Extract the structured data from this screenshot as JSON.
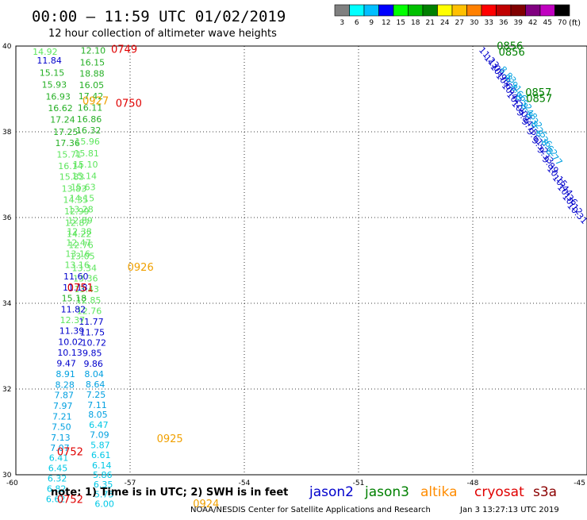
{
  "header": {
    "title": "00:00 — 11:59 UTC 01/02/2019",
    "subtitle": "12 hour collection of altimeter wave heights"
  },
  "colorbar": {
    "unit": "(ft)",
    "labels": [
      "3",
      "6",
      "9",
      "12",
      "15",
      "18",
      "21",
      "24",
      "27",
      "30",
      "33",
      "36",
      "39",
      "42",
      "45",
      "70"
    ],
    "colors": [
      "#808080",
      "#00ffff",
      "#00bfff",
      "#0000ff",
      "#00ff00",
      "#00c000",
      "#008000",
      "#ffff00",
      "#ffc000",
      "#ff8000",
      "#ff0000",
      "#c00000",
      "#800000",
      "#800080",
      "#c000c0",
      "#000000"
    ]
  },
  "chart_data": {
    "type": "scatter",
    "xlim": [
      -60,
      -45
    ],
    "ylim": [
      30,
      40
    ],
    "x_ticks": [
      -60,
      -57,
      -54,
      -51,
      -48,
      -45
    ],
    "y_ticks": [
      30,
      32,
      34,
      36,
      38,
      40
    ],
    "x_tick_labels": [
      "-60",
      "-57",
      "-54",
      "-51",
      "-48",
      "-45"
    ],
    "y_tick_labels": [
      "30",
      "32",
      "34",
      "36",
      "38",
      "40"
    ],
    "grid": true,
    "wave_heights": [
      {
        "lon": -59.56,
        "lat": 39.8,
        "value": "14.92",
        "color": "#5ee65e"
      },
      {
        "lon": -59.45,
        "lat": 39.59,
        "value": "11.84",
        "color": "#0000cc"
      },
      {
        "lon": -59.38,
        "lat": 39.31,
        "value": "15.15",
        "color": "#26b026"
      },
      {
        "lon": -59.32,
        "lat": 39.03,
        "value": "15.93",
        "color": "#26b026"
      },
      {
        "lon": -59.22,
        "lat": 38.75,
        "value": "16.93",
        "color": "#26b026"
      },
      {
        "lon": -59.16,
        "lat": 38.48,
        "value": "16.62",
        "color": "#26b026"
      },
      {
        "lon": -59.1,
        "lat": 38.21,
        "value": "17.24",
        "color": "#26b026"
      },
      {
        "lon": -59.02,
        "lat": 37.93,
        "value": "17.25",
        "color": "#26b026"
      },
      {
        "lon": -58.97,
        "lat": 37.67,
        "value": "17.36",
        "color": "#26b026"
      },
      {
        "lon": -58.93,
        "lat": 37.4,
        "value": "15.71",
        "color": "#5ee65e"
      },
      {
        "lon": -58.89,
        "lat": 37.13,
        "value": "16.14",
        "color": "#5ee65e"
      },
      {
        "lon": -58.86,
        "lat": 36.88,
        "value": "15.83",
        "color": "#5ee65e"
      },
      {
        "lon": -58.8,
        "lat": 36.6,
        "value": "13.83",
        "color": "#5ee65e"
      },
      {
        "lon": -58.76,
        "lat": 36.34,
        "value": "14.35",
        "color": "#5ee65e"
      },
      {
        "lon": -58.73,
        "lat": 36.07,
        "value": "12.99",
        "color": "#5ee65e"
      },
      {
        "lon": -58.71,
        "lat": 35.81,
        "value": "12.87",
        "color": "#5ee65e"
      },
      {
        "lon": -58.67,
        "lat": 35.55,
        "value": "14.22",
        "color": "#5ee65e"
      },
      {
        "lon": -58.62,
        "lat": 35.29,
        "value": "12.76",
        "color": "#5ee65e"
      },
      {
        "lon": -58.58,
        "lat": 35.03,
        "value": "13.05",
        "color": "#5ee65e"
      },
      {
        "lon": -58.53,
        "lat": 34.75,
        "value": "13.34",
        "color": "#5ee65e"
      },
      {
        "lon": -58.5,
        "lat": 34.51,
        "value": "13.36",
        "color": "#5ee65e"
      },
      {
        "lon": -58.47,
        "lat": 34.26,
        "value": "13.43",
        "color": "#5ee65e"
      },
      {
        "lon": -58.42,
        "lat": 34.0,
        "value": "12.85",
        "color": "#5ee65e"
      },
      {
        "lon": -58.4,
        "lat": 33.75,
        "value": "12.76",
        "color": "#5ee65e"
      },
      {
        "lon": -58.35,
        "lat": 33.5,
        "value": "11.77",
        "color": "#0000cc"
      },
      {
        "lon": -58.32,
        "lat": 33.25,
        "value": "11.75",
        "color": "#0000cc"
      },
      {
        "lon": -58.28,
        "lat": 33.01,
        "value": "10.72",
        "color": "#0000cc"
      },
      {
        "lon": -58.25,
        "lat": 32.77,
        "value": "9.85",
        "color": "#0000cc"
      },
      {
        "lon": -58.22,
        "lat": 32.52,
        "value": "9.86",
        "color": "#0000cc"
      },
      {
        "lon": -58.2,
        "lat": 32.28,
        "value": "8.04",
        "color": "#00a0e0"
      },
      {
        "lon": -58.17,
        "lat": 32.04,
        "value": "8.64",
        "color": "#00a0e0"
      },
      {
        "lon": -58.15,
        "lat": 31.8,
        "value": "7.25",
        "color": "#00a0e0"
      },
      {
        "lon": -58.12,
        "lat": 31.56,
        "value": "7.11",
        "color": "#00a0e0"
      },
      {
        "lon": -58.1,
        "lat": 31.33,
        "value": "8.05",
        "color": "#00a0e0"
      },
      {
        "lon": -58.08,
        "lat": 31.09,
        "value": "6.47",
        "color": "#00c8e6"
      },
      {
        "lon": -58.06,
        "lat": 30.86,
        "value": "7.09",
        "color": "#00a0e0"
      },
      {
        "lon": -58.04,
        "lat": 30.62,
        "value": "5.87",
        "color": "#00c8e6"
      },
      {
        "lon": -58.02,
        "lat": 30.39,
        "value": "6.61",
        "color": "#00c8e6"
      },
      {
        "lon": -58.0,
        "lat": 30.15,
        "value": "6.14",
        "color": "#00c8e6"
      },
      {
        "lon": -57.98,
        "lat": 29.93,
        "value": "5.86",
        "color": "#00c8e6"
      },
      {
        "lon": -57.96,
        "lat": 29.7,
        "value": "6.35",
        "color": "#00c8e6"
      },
      {
        "lon": -57.94,
        "lat": 29.47,
        "value": "5.75",
        "color": "#00c8e6"
      },
      {
        "lon": -57.93,
        "lat": 29.25,
        "value": "6.00",
        "color": "#00c8e6"
      },
      {
        "lon": -58.3,
        "lat": 39.82,
        "value": "12.10",
        "color": "#26b026"
      },
      {
        "lon": -58.32,
        "lat": 39.55,
        "value": "16.15",
        "color": "#26b026"
      },
      {
        "lon": -58.33,
        "lat": 39.29,
        "value": "18.88",
        "color": "#26b026"
      },
      {
        "lon": -58.34,
        "lat": 39.02,
        "value": "16.05",
        "color": "#26b026"
      },
      {
        "lon": -58.36,
        "lat": 38.76,
        "value": "17.42",
        "color": "#26b026"
      },
      {
        "lon": -58.38,
        "lat": 38.49,
        "value": "16.11",
        "color": "#26b026"
      },
      {
        "lon": -58.4,
        "lat": 38.22,
        "value": "16.86",
        "color": "#26b026"
      },
      {
        "lon": -58.42,
        "lat": 37.96,
        "value": "16.32",
        "color": "#26b026"
      },
      {
        "lon": -58.45,
        "lat": 37.7,
        "value": "15.96",
        "color": "#5ee65e"
      },
      {
        "lon": -58.47,
        "lat": 37.43,
        "value": "15.81",
        "color": "#5ee65e"
      },
      {
        "lon": -58.5,
        "lat": 37.17,
        "value": "15.10",
        "color": "#5ee65e"
      },
      {
        "lon": -58.53,
        "lat": 36.9,
        "value": "15.14",
        "color": "#5ee65e"
      },
      {
        "lon": -58.56,
        "lat": 36.64,
        "value": "15.63",
        "color": "#5ee65e"
      },
      {
        "lon": -58.59,
        "lat": 36.38,
        "value": "14.15",
        "color": "#5ee65e"
      },
      {
        "lon": -58.62,
        "lat": 36.12,
        "value": "13.28",
        "color": "#5ee65e"
      },
      {
        "lon": -58.64,
        "lat": 35.86,
        "value": "12.89",
        "color": "#5ee65e"
      },
      {
        "lon": -58.66,
        "lat": 35.6,
        "value": "12.38",
        "color": "#5ee65e"
      },
      {
        "lon": -58.68,
        "lat": 35.34,
        "value": "12.47",
        "color": "#5ee65e"
      },
      {
        "lon": -58.7,
        "lat": 35.08,
        "value": "13.16",
        "color": "#5ee65e"
      },
      {
        "lon": -58.72,
        "lat": 34.82,
        "value": "13.16",
        "color": "#5ee65e"
      },
      {
        "lon": -58.75,
        "lat": 34.56,
        "value": "11.60",
        "color": "#0000cc"
      },
      {
        "lon": -58.77,
        "lat": 34.3,
        "value": "11.18",
        "color": "#0000cc"
      },
      {
        "lon": -58.8,
        "lat": 34.05,
        "value": "15.18",
        "color": "#26b026"
      },
      {
        "lon": -58.82,
        "lat": 33.79,
        "value": "11.82",
        "color": "#0000cc"
      },
      {
        "lon": -58.84,
        "lat": 33.54,
        "value": "12.37",
        "color": "#5ee65e"
      },
      {
        "lon": -58.86,
        "lat": 33.29,
        "value": "11.39",
        "color": "#0000cc"
      },
      {
        "lon": -58.89,
        "lat": 33.03,
        "value": "10.02",
        "color": "#0000cc"
      },
      {
        "lon": -58.91,
        "lat": 32.78,
        "value": "10.13",
        "color": "#0000cc"
      },
      {
        "lon": -58.93,
        "lat": 32.53,
        "value": "9.47",
        "color": "#0000cc"
      },
      {
        "lon": -58.95,
        "lat": 32.28,
        "value": "8.91",
        "color": "#00a0e0"
      },
      {
        "lon": -58.97,
        "lat": 32.03,
        "value": "8.28",
        "color": "#00a0e0"
      },
      {
        "lon": -58.99,
        "lat": 31.79,
        "value": "7.87",
        "color": "#00a0e0"
      },
      {
        "lon": -59.02,
        "lat": 31.54,
        "value": "7.97",
        "color": "#00a0e0"
      },
      {
        "lon": -59.04,
        "lat": 31.29,
        "value": "7.21",
        "color": "#00a0e0"
      },
      {
        "lon": -59.06,
        "lat": 31.05,
        "value": "7.50",
        "color": "#00a0e0"
      },
      {
        "lon": -59.08,
        "lat": 30.8,
        "value": "7.13",
        "color": "#00a0e0"
      },
      {
        "lon": -59.1,
        "lat": 30.56,
        "value": "7.07",
        "color": "#00a0e0"
      },
      {
        "lon": -59.13,
        "lat": 30.32,
        "value": "6.41",
        "color": "#00c8e6"
      },
      {
        "lon": -59.15,
        "lat": 30.08,
        "value": "6.45",
        "color": "#00c8e6"
      },
      {
        "lon": -59.17,
        "lat": 29.84,
        "value": "6.32",
        "color": "#00c8e6"
      },
      {
        "lon": -59.19,
        "lat": 29.6,
        "value": "6.82",
        "color": "#00c8e6"
      },
      {
        "lon": -59.21,
        "lat": 29.36,
        "value": "6.62",
        "color": "#00c8e6"
      }
    ],
    "pass_times": [
      {
        "lon": -57.5,
        "lat": 39.84,
        "value": "0749",
        "color": "#e00000"
      },
      {
        "lon": -58.25,
        "lat": 38.64,
        "value": "0927",
        "color": "#f0a000"
      },
      {
        "lon": -57.38,
        "lat": 38.58,
        "value": "0750",
        "color": "#e00000"
      },
      {
        "lon": -57.07,
        "lat": 34.76,
        "value": "0926",
        "color": "#f0a000"
      },
      {
        "lon": -58.65,
        "lat": 34.28,
        "value": "0751",
        "color": "#e00000"
      },
      {
        "lon": -56.3,
        "lat": 30.76,
        "value": "0925",
        "color": "#f0a000"
      },
      {
        "lon": -58.92,
        "lat": 30.45,
        "value": "0752",
        "color": "#e00000"
      },
      {
        "lon": -58.92,
        "lat": 29.34,
        "value": "0752",
        "color": "#e00000"
      },
      {
        "lon": -55.35,
        "lat": 29.24,
        "value": "0924",
        "color": "#f0a000"
      },
      {
        "lon": -47.37,
        "lat": 39.92,
        "value": "0856",
        "color": "#008000"
      },
      {
        "lon": -47.32,
        "lat": 39.78,
        "value": "0856",
        "color": "#008000"
      },
      {
        "lon": -46.62,
        "lat": 38.83,
        "value": "0857",
        "color": "#008000"
      },
      {
        "lon": -46.6,
        "lat": 38.69,
        "value": "0857",
        "color": "#008000"
      }
    ],
    "swath_heights": [
      {
        "lon": -47.85,
        "lat": 39.9,
        "value": "11.23",
        "color": "#0000cc"
      },
      {
        "lon": -47.71,
        "lat": 39.72,
        "value": "11.09",
        "color": "#0000cc"
      },
      {
        "lon": -47.55,
        "lat": 39.51,
        "value": "10.98",
        "color": "#0000cc"
      },
      {
        "lon": -47.4,
        "lat": 39.3,
        "value": "10.66",
        "color": "#0000cc"
      },
      {
        "lon": -47.25,
        "lat": 39.07,
        "value": "10.42",
        "color": "#0000cc"
      },
      {
        "lon": -47.12,
        "lat": 38.86,
        "value": "10.21",
        "color": "#0000cc"
      },
      {
        "lon": -46.99,
        "lat": 38.65,
        "value": "10.07",
        "color": "#0000cc"
      },
      {
        "lon": -46.86,
        "lat": 38.44,
        "value": "9.84",
        "color": "#0000cc"
      },
      {
        "lon": -46.73,
        "lat": 38.23,
        "value": "9.75",
        "color": "#0000cc"
      },
      {
        "lon": -46.59,
        "lat": 38.0,
        "value": "9.61",
        "color": "#0000cc"
      },
      {
        "lon": -46.46,
        "lat": 37.79,
        "value": "9.52",
        "color": "#0000cc"
      },
      {
        "lon": -46.32,
        "lat": 37.57,
        "value": "9.33",
        "color": "#0000cc"
      },
      {
        "lon": -46.19,
        "lat": 37.35,
        "value": "9.89",
        "color": "#0000cc"
      },
      {
        "lon": -46.06,
        "lat": 37.13,
        "value": "10.15",
        "color": "#0000cc"
      },
      {
        "lon": -45.92,
        "lat": 36.92,
        "value": "10.44",
        "color": "#0000cc"
      },
      {
        "lon": -45.79,
        "lat": 36.7,
        "value": "10.36",
        "color": "#0000cc"
      },
      {
        "lon": -45.66,
        "lat": 36.48,
        "value": "10.12",
        "color": "#0000cc"
      },
      {
        "lon": -45.53,
        "lat": 36.27,
        "value": "10.31",
        "color": "#0000cc"
      },
      {
        "lon": -47.3,
        "lat": 39.45,
        "value": "8.83",
        "color": "#00a0e0"
      },
      {
        "lon": -47.16,
        "lat": 39.24,
        "value": "8.91",
        "color": "#00a0e0"
      },
      {
        "lon": -47.02,
        "lat": 39.03,
        "value": "8.66",
        "color": "#00a0e0"
      },
      {
        "lon": -46.89,
        "lat": 38.81,
        "value": "8.52",
        "color": "#00a0e0"
      },
      {
        "lon": -46.75,
        "lat": 38.6,
        "value": "8.48",
        "color": "#00a0e0"
      },
      {
        "lon": -46.62,
        "lat": 38.39,
        "value": "8.32",
        "color": "#00a0e0"
      },
      {
        "lon": -46.49,
        "lat": 38.17,
        "value": "8.25",
        "color": "#00a0e0"
      },
      {
        "lon": -46.36,
        "lat": 37.96,
        "value": "8.36",
        "color": "#00a0e0"
      },
      {
        "lon": -46.22,
        "lat": 37.75,
        "value": "8.62",
        "color": "#00a0e0"
      },
      {
        "lon": -46.09,
        "lat": 37.54,
        "value": "8.77",
        "color": "#00a0e0"
      }
    ]
  },
  "footer": {
    "note": "note:  1) Time is in UTC;  2) SWH is in feet",
    "credit": "NOAA/NESDIS Center for Satellite Applications and Research",
    "timestamp": "Jan  3 13:27:13 UTC 2019",
    "legend": [
      {
        "label": "jason2",
        "color": "#0000cc"
      },
      {
        "label": "jason3",
        "color": "#008000"
      },
      {
        "label": "altika",
        "color": "#ff8c00"
      },
      {
        "label": "cryosat",
        "color": "#e00000"
      },
      {
        "label": "s3a",
        "color": "#8b0000"
      }
    ]
  }
}
